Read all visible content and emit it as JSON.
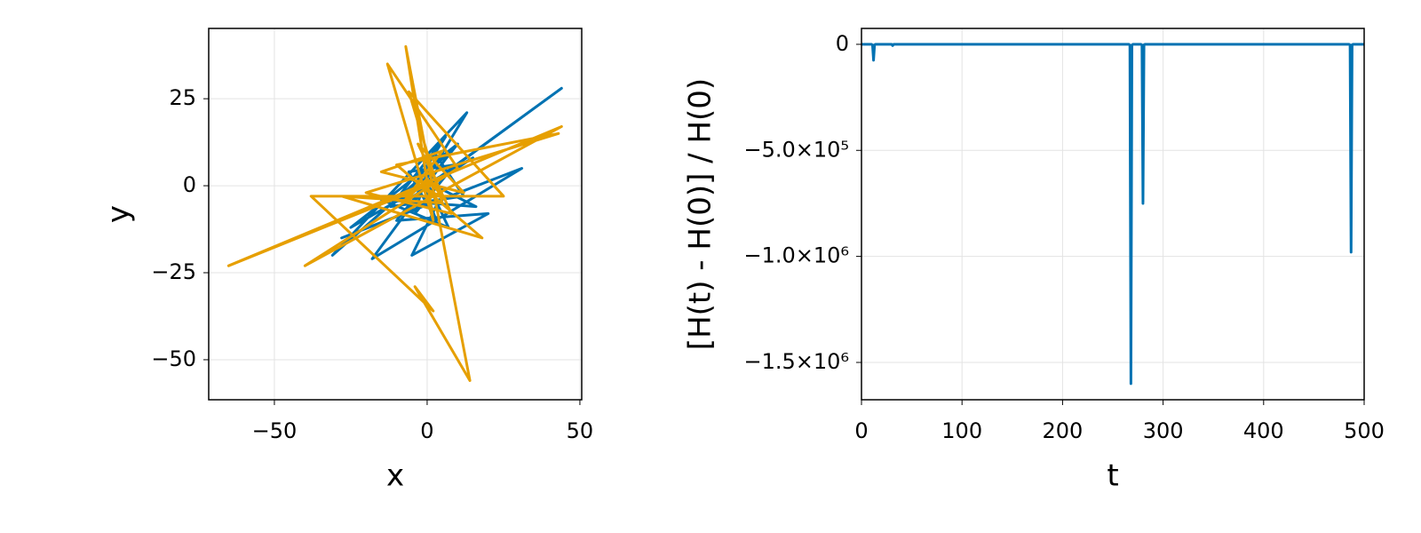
{
  "chart_data": [
    {
      "type": "line",
      "xlabel": "x",
      "ylabel": "y",
      "xlim": [
        -71.5,
        50.6
      ],
      "ylim": [
        -61.5,
        45.2
      ],
      "xticks": [
        {
          "value": -50,
          "label": "−50"
        },
        0,
        50
      ],
      "yticks": [
        {
          "value": -50,
          "label": "−50"
        },
        {
          "value": -25,
          "label": "−25"
        },
        0,
        25
      ],
      "grid": true,
      "series": [
        {
          "color": "#0072b2",
          "x": [
            0,
            5,
            44,
            -3,
            13,
            -31,
            8,
            -18,
            31,
            -28,
            4,
            -5,
            20,
            -10,
            10,
            -25,
            15,
            -8,
            6,
            -12,
            12,
            2,
            -4,
            9,
            -6,
            3,
            -2,
            16,
            -15,
            7,
            0
          ],
          "y": [
            0,
            3,
            28,
            -2,
            21,
            -20,
            10,
            -21,
            5,
            -15,
            -4,
            -20,
            -8,
            -10,
            12,
            -12,
            8,
            -5,
            14,
            -6,
            -3,
            10,
            -8,
            6,
            4,
            -10,
            2,
            -6,
            -4,
            -12,
            1
          ]
        },
        {
          "color": "#e69f00",
          "x": [
            0,
            -65,
            44,
            -40,
            10,
            -13,
            2,
            -7,
            14,
            -4,
            2,
            -38,
            25,
            -6,
            5,
            -28,
            18,
            -10,
            43,
            -20,
            8,
            -3,
            12,
            -15,
            5,
            -8,
            0,
            6,
            -2
          ],
          "y": [
            0,
            -23,
            17,
            -23,
            5,
            35,
            -10,
            40,
            -56,
            -29,
            -36,
            -3,
            -3,
            27,
            -5,
            -3,
            -15,
            6,
            15,
            -2,
            -8,
            12,
            -2,
            4,
            10,
            -5,
            2,
            -4,
            0
          ]
        }
      ]
    },
    {
      "type": "line",
      "xlabel": "t",
      "ylabel": "[H(t) - H(0)] / H(0)",
      "xlim": [
        0,
        500
      ],
      "ylim": [
        -1676000,
        75000
      ],
      "xticks": [
        0,
        100,
        200,
        300,
        400,
        500
      ],
      "yticks": [
        0,
        {
          "value": -500000,
          "label": "−5.0×10⁵"
        },
        {
          "value": -1000000,
          "label": "−1.0×10⁶"
        },
        {
          "value": -1500000,
          "label": "−1.5×10⁶"
        }
      ],
      "grid": true,
      "x": [
        0,
        5,
        10,
        11,
        12,
        13,
        14,
        20,
        30,
        31,
        32,
        40,
        60,
        100,
        150,
        200,
        250,
        266,
        267,
        268,
        269,
        270,
        278,
        279,
        280,
        281,
        282,
        300,
        350,
        400,
        450,
        485,
        486,
        487,
        488,
        489,
        500
      ],
      "series": [
        {
          "color": "#0072b2",
          "values": [
            0,
            0,
            0,
            -3000,
            -75000,
            -2000,
            0,
            0,
            0,
            -6000,
            0,
            0,
            0,
            0,
            0,
            0,
            0,
            0,
            -4000,
            -1600000,
            -3000,
            0,
            0,
            -3000,
            -750000,
            -2000,
            0,
            0,
            0,
            0,
            0,
            0,
            -3000,
            -980000,
            -2000,
            0,
            0
          ]
        }
      ]
    }
  ]
}
